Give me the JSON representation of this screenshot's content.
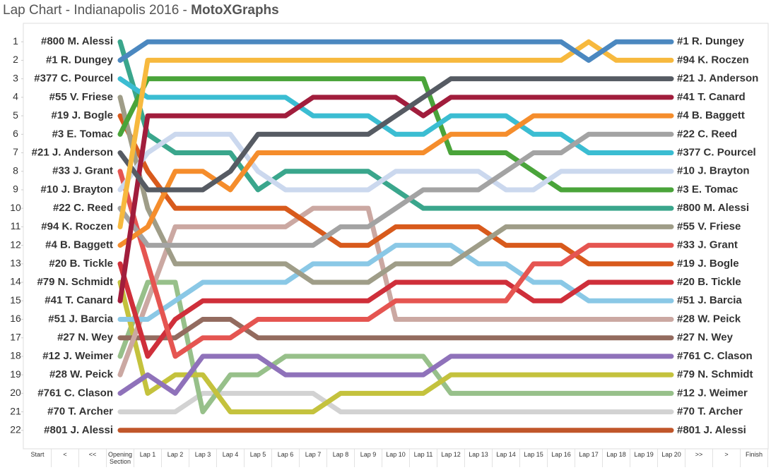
{
  "chart_data": {
    "type": "bump",
    "title": "Lap Chart - Indianapolis 2016 -",
    "brand": "MotoXGraphs",
    "categories": [
      "Start",
      "<",
      "<<",
      "Opening Section",
      "Lap 1",
      "Lap 2",
      "Lap 3",
      "Lap 4",
      "Lap 5",
      "Lap 6",
      "Lap 7",
      "Lap 8",
      "Lap 9",
      "Lap 10",
      "Lap 11",
      "Lap 12",
      "Lap 13",
      "Lap 14",
      "Lap 15",
      "Lap 16",
      "Lap 17",
      "Lap 18",
      "Lap 19",
      "Lap 20",
      ">>",
      ">",
      "Finish"
    ],
    "ylim": [
      0,
      23
    ],
    "yticks": [
      1,
      2,
      3,
      4,
      5,
      6,
      7,
      8,
      9,
      10,
      11,
      12,
      13,
      14,
      15,
      16,
      17,
      18,
      19,
      20,
      21,
      22
    ],
    "y_reversed": true,
    "series": [
      {
        "name": "#801 J. Alessi",
        "color": "#c0562a",
        "values": [
          null,
          null,
          null,
          22,
          22,
          22,
          22,
          22,
          22,
          22,
          22,
          22,
          22,
          22,
          22,
          22,
          22,
          22,
          22,
          22,
          22,
          22,
          22,
          22,
          null,
          null,
          null
        ]
      },
      {
        "name": "#70 T. Archer",
        "color": "#d2d2d2",
        "values": [
          null,
          null,
          null,
          21,
          21,
          21,
          20,
          20,
          20,
          20,
          20,
          21,
          21,
          21,
          21,
          21,
          21,
          21,
          21,
          21,
          21,
          21,
          21,
          21,
          null,
          null,
          null
        ]
      },
      {
        "name": "#12 J. Weimer",
        "color": "#97c08a",
        "values": [
          null,
          null,
          null,
          18,
          14,
          14,
          21,
          19,
          19,
          18,
          18,
          18,
          18,
          18,
          18,
          20,
          20,
          20,
          20,
          20,
          20,
          20,
          20,
          20,
          null,
          null,
          null
        ]
      },
      {
        "name": "#79 N. Schmidt",
        "color": "#c4c23d",
        "values": [
          null,
          null,
          null,
          14,
          20,
          19,
          19,
          21,
          21,
          21,
          21,
          20,
          20,
          20,
          20,
          19,
          19,
          19,
          19,
          19,
          19,
          19,
          19,
          19,
          null,
          null,
          null
        ]
      },
      {
        "name": "#761 C. Clason",
        "color": "#8f72ba",
        "values": [
          null,
          null,
          null,
          20,
          19,
          20,
          18,
          18,
          18,
          19,
          19,
          19,
          19,
          19,
          19,
          18,
          18,
          18,
          18,
          18,
          18,
          18,
          18,
          18,
          null,
          null,
          null
        ]
      },
      {
        "name": "#27 N. Wey",
        "color": "#936b5f",
        "values": [
          null,
          null,
          null,
          17,
          17,
          17,
          16,
          16,
          17,
          17,
          17,
          17,
          17,
          17,
          17,
          17,
          17,
          17,
          17,
          17,
          17,
          17,
          17,
          17,
          null,
          null,
          null
        ]
      },
      {
        "name": "#28 W. Peick",
        "color": "#cba8a2",
        "values": [
          null,
          null,
          null,
          19,
          15,
          11,
          11,
          11,
          11,
          11,
          10,
          10,
          10,
          16,
          16,
          16,
          16,
          16,
          16,
          16,
          16,
          16,
          16,
          16,
          null,
          null,
          null
        ]
      },
      {
        "name": "#51 J. Barcia",
        "color": "#8ac8e6",
        "values": [
          null,
          null,
          null,
          16,
          16,
          15,
          14,
          14,
          14,
          14,
          13,
          13,
          13,
          12,
          12,
          12,
          13,
          13,
          14,
          14,
          15,
          15,
          15,
          15,
          null,
          null,
          null
        ]
      },
      {
        "name": "#20 B. Tickle",
        "color": "#cf2f3a",
        "values": [
          null,
          null,
          null,
          13,
          18,
          16,
          15,
          15,
          15,
          15,
          15,
          15,
          15,
          14,
          14,
          14,
          14,
          14,
          15,
          15,
          14,
          14,
          14,
          14,
          null,
          null,
          null
        ]
      },
      {
        "name": "#19 J. Bogle",
        "color": "#d85a1c",
        "values": [
          null,
          null,
          null,
          5,
          8,
          10,
          10,
          10,
          10,
          10,
          11,
          12,
          12,
          11,
          11,
          11,
          11,
          12,
          12,
          12,
          13,
          13,
          13,
          13,
          null,
          null,
          null
        ]
      },
      {
        "name": "#33 J. Grant",
        "color": "#e55551",
        "values": [
          null,
          null,
          null,
          8,
          13,
          18,
          17,
          17,
          16,
          16,
          16,
          16,
          16,
          15,
          15,
          15,
          15,
          15,
          13,
          13,
          12,
          12,
          12,
          12,
          null,
          null,
          null
        ]
      },
      {
        "name": "#55 V. Friese",
        "color": "#9f9d88",
        "values": [
          null,
          null,
          null,
          4,
          10,
          13,
          13,
          13,
          13,
          13,
          14,
          14,
          14,
          13,
          13,
          13,
          12,
          11,
          11,
          11,
          11,
          11,
          11,
          11,
          null,
          null,
          null
        ]
      },
      {
        "name": "#800 M. Alessi",
        "color": "#3aa68c",
        "values": [
          null,
          null,
          null,
          1,
          6,
          7,
          7,
          7,
          9,
          8,
          8,
          8,
          8,
          9,
          10,
          10,
          10,
          10,
          10,
          10,
          10,
          10,
          10,
          10,
          null,
          null,
          null
        ]
      },
      {
        "name": "#3 E. Tomac",
        "color": "#4aa43a",
        "values": [
          null,
          null,
          null,
          6,
          3,
          3,
          3,
          3,
          3,
          3,
          3,
          3,
          3,
          3,
          3,
          7,
          7,
          7,
          8,
          9,
          9,
          9,
          9,
          9,
          null,
          null,
          null
        ]
      },
      {
        "name": "#10 J. Brayton",
        "color": "#cbd8ee",
        "values": [
          null,
          null,
          null,
          9,
          7,
          6,
          6,
          6,
          8,
          9,
          9,
          9,
          9,
          8,
          8,
          8,
          8,
          9,
          9,
          8,
          8,
          8,
          8,
          8,
          null,
          null,
          null
        ]
      },
      {
        "name": "#377 C. Pourcel",
        "color": "#3bbdd2",
        "values": [
          null,
          null,
          null,
          3,
          4,
          4,
          4,
          4,
          4,
          4,
          5,
          5,
          5,
          6,
          6,
          5,
          5,
          5,
          6,
          6,
          7,
          7,
          7,
          7,
          null,
          null,
          null
        ]
      },
      {
        "name": "#22 C. Reed",
        "color": "#a3a3a3",
        "values": [
          null,
          null,
          null,
          10,
          12,
          12,
          12,
          12,
          12,
          12,
          12,
          11,
          11,
          10,
          9,
          9,
          9,
          8,
          7,
          7,
          6,
          6,
          6,
          6,
          null,
          null,
          null
        ]
      },
      {
        "name": "#4 B. Baggett",
        "color": "#f58d2c",
        "values": [
          null,
          null,
          null,
          12,
          11,
          8,
          8,
          9,
          7,
          7,
          7,
          7,
          7,
          7,
          7,
          6,
          6,
          6,
          5,
          5,
          5,
          5,
          5,
          5,
          null,
          null,
          null
        ]
      },
      {
        "name": "#41 T. Canard",
        "color": "#a11d3c",
        "values": [
          null,
          null,
          null,
          15,
          5,
          5,
          5,
          5,
          5,
          5,
          4,
          4,
          4,
          4,
          5,
          4,
          4,
          4,
          4,
          4,
          4,
          4,
          4,
          4,
          null,
          null,
          null
        ]
      },
      {
        "name": "#21 J. Anderson",
        "color": "#565b63",
        "values": [
          null,
          null,
          null,
          7,
          9,
          9,
          9,
          8,
          6,
          6,
          6,
          6,
          6,
          5,
          4,
          3,
          3,
          3,
          3,
          3,
          3,
          3,
          3,
          3,
          null,
          null,
          null
        ]
      },
      {
        "name": "#94 K. Roczen",
        "color": "#f7b93e",
        "values": [
          null,
          null,
          null,
          11,
          2,
          2,
          2,
          2,
          2,
          2,
          2,
          2,
          2,
          2,
          2,
          2,
          2,
          2,
          2,
          2,
          1,
          2,
          2,
          2,
          null,
          null,
          null
        ]
      },
      {
        "name": "#1 R. Dungey",
        "color": "#4b88c0",
        "values": [
          null,
          null,
          null,
          2,
          1,
          1,
          1,
          1,
          1,
          1,
          1,
          1,
          1,
          1,
          1,
          1,
          1,
          1,
          1,
          1,
          2,
          1,
          1,
          1,
          null,
          null,
          null
        ]
      }
    ]
  }
}
